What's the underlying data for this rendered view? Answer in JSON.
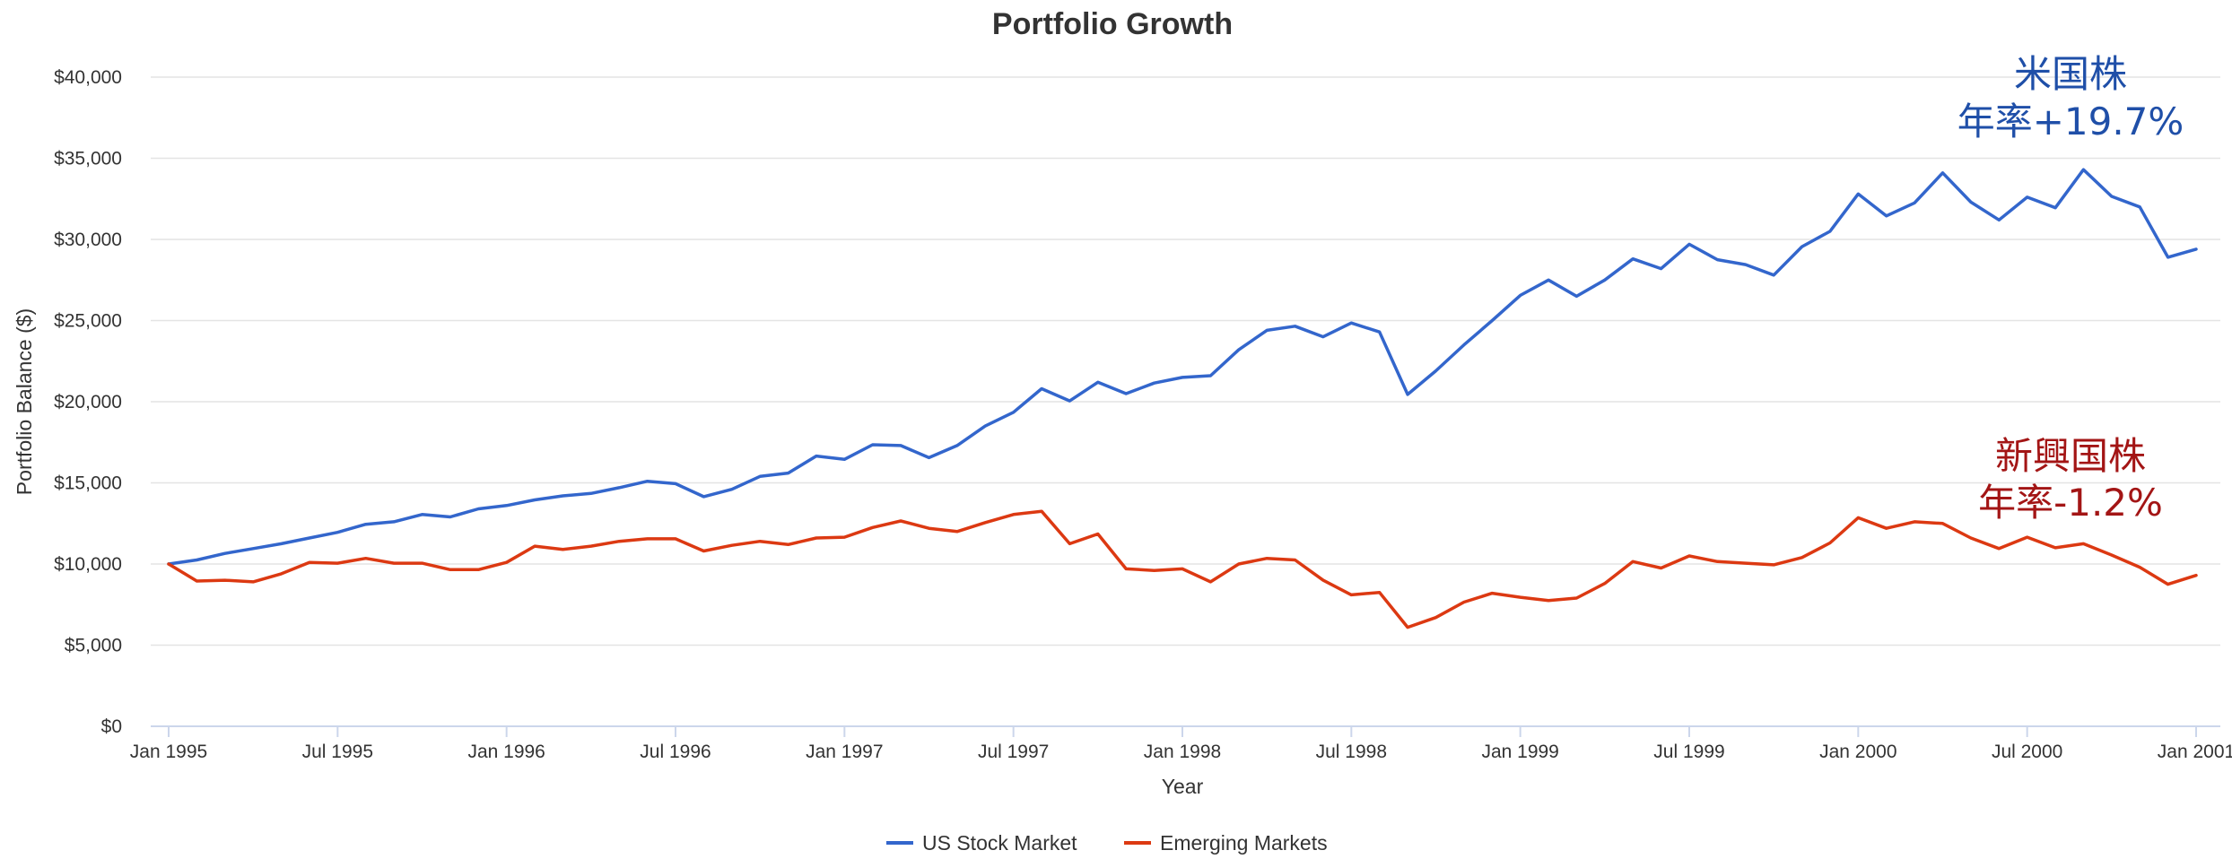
{
  "chart_data": {
    "type": "line",
    "title": "Portfolio Growth",
    "xlabel": "Year",
    "ylabel": "Portfolio Balance ($)",
    "ylim": [
      0,
      40000
    ],
    "yticks": [
      0,
      5000,
      10000,
      15000,
      20000,
      25000,
      30000,
      35000,
      40000
    ],
    "ytick_labels": [
      "$0",
      "$5,000",
      "$10,000",
      "$15,000",
      "$20,000",
      "$25,000",
      "$30,000",
      "$35,000",
      "$40,000"
    ],
    "xticks": [
      "1995-01",
      "1995-07",
      "1996-01",
      "1996-07",
      "1997-01",
      "1997-07",
      "1998-01",
      "1998-07",
      "1999-01",
      "1999-07",
      "2000-01",
      "2000-07",
      "2001-01"
    ],
    "xtick_labels": [
      "Jan 1995",
      "Jul 1995",
      "Jan 1996",
      "Jul 1996",
      "Jan 1997",
      "Jul 1997",
      "Jan 1998",
      "Jul 1998",
      "Jan 1999",
      "Jul 1999",
      "Jan 2000",
      "Jul 2000",
      "Jan 2001"
    ],
    "x_start": "1995-01",
    "grid": true,
    "legend_position": "bottom-center",
    "series": [
      {
        "name": "US Stock Market",
        "color": "#3366cc",
        "values": [
          10000,
          10250,
          10650,
          10950,
          11250,
          11600,
          11950,
          12450,
          12600,
          13050,
          12900,
          13400,
          13600,
          13950,
          14200,
          14350,
          14700,
          15100,
          14950,
          14150,
          14600,
          15400,
          15600,
          16650,
          16450,
          17350,
          17300,
          16550,
          17300,
          18500,
          19350,
          20800,
          20050,
          21200,
          20500,
          21150,
          21500,
          21600,
          23200,
          24400,
          24650,
          24000,
          24850,
          24300,
          20450,
          21900,
          23500,
          25000,
          26550,
          27500,
          26500,
          27500,
          28800,
          28200,
          29700,
          28750,
          28450,
          27800,
          29550,
          30500,
          32800,
          31450,
          32250,
          34100,
          32300,
          31200,
          32600,
          31950,
          34300,
          32650,
          32000,
          28900,
          29400
        ]
      },
      {
        "name": "Emerging Markets",
        "color": "#dc3912",
        "values": [
          10000,
          8950,
          9000,
          8900,
          9400,
          10100,
          10050,
          10350,
          10050,
          10050,
          9650,
          9650,
          10100,
          11100,
          10900,
          11100,
          11400,
          11550,
          11550,
          10800,
          11150,
          11400,
          11200,
          11600,
          11650,
          12250,
          12650,
          12200,
          12000,
          12550,
          13050,
          13250,
          11250,
          11850,
          9700,
          9600,
          9700,
          8900,
          10000,
          10350,
          10250,
          9000,
          8100,
          8250,
          6100,
          6700,
          7650,
          8200,
          7950,
          7750,
          7900,
          8800,
          10150,
          9750,
          10500,
          10150,
          10050,
          9950,
          10400,
          11300,
          12850,
          12200,
          12600,
          12500,
          11600,
          10950,
          11650,
          11000,
          11250,
          10550,
          9800,
          8750,
          9300
        ]
      }
    ],
    "annotations": [
      {
        "line1": "米国株",
        "line2": "年率+19.7%",
        "color": "#1f4fa8",
        "series": "US Stock Market"
      },
      {
        "line1": "新興国株",
        "line2": "年率-1.2%",
        "color": "#a31515",
        "series": "Emerging Markets"
      }
    ]
  }
}
